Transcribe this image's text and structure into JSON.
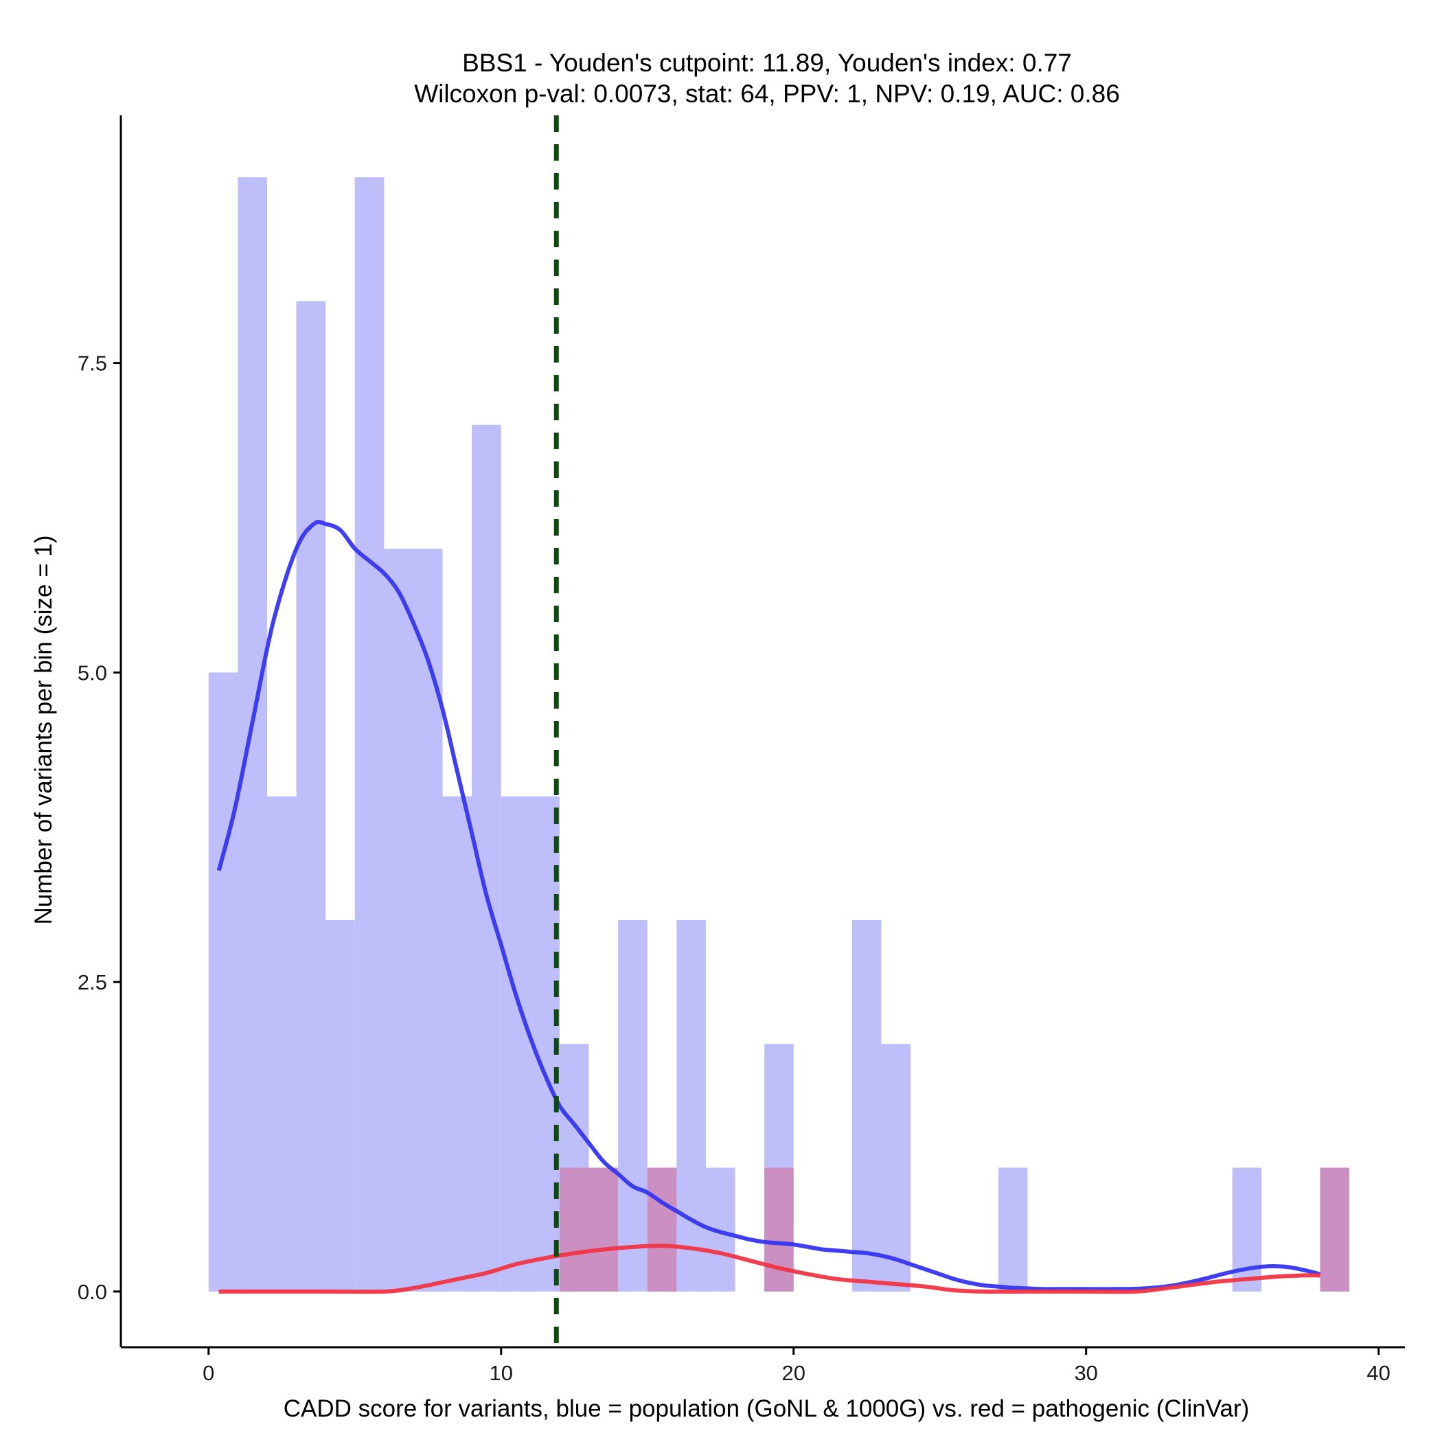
{
  "chart_data": {
    "type": "bar",
    "title": "BBS1 - Youden's cutpoint: 11.89, Youden's index: 0.77",
    "subtitle": "Wilcoxon p-val: 0.0073, stat: 64, PPV: 1, NPV: 0.19, AUC: 0.86",
    "xlabel": "CADD score for variants, blue = population (GoNL & 1000G) vs. red = pathogenic (ClinVar)",
    "ylabel": "Number of variants per bin (size = 1)",
    "xlim": [
      -3,
      40.9
    ],
    "ylim": [
      -0.45,
      9.5
    ],
    "x_ticks": [
      0,
      10,
      20,
      30,
      40
    ],
    "x_tick_labels": [
      "0",
      "10",
      "20",
      "30",
      "40"
    ],
    "y_ticks": [
      0,
      2.5,
      5,
      7.5
    ],
    "y_tick_labels": [
      "0.0",
      "2.5",
      "5.0",
      "7.5"
    ],
    "bin_width": 1,
    "cutpoint": 11.89,
    "colors": {
      "population_bar": "#bebefb",
      "pathogenic_bar": "#cc8fc2",
      "population_density": "#3535f0",
      "pathogenic_density": "#f03545",
      "cutpoint_line": "#0e4a0e",
      "axis": "#000000"
    },
    "series": [
      {
        "name": "population (GoNL & 1000G)",
        "kind": "histogram",
        "bins": [
          {
            "x0": 0,
            "count": 5
          },
          {
            "x0": 1,
            "count": 9
          },
          {
            "x0": 2,
            "count": 4
          },
          {
            "x0": 3,
            "count": 8
          },
          {
            "x0": 4,
            "count": 3
          },
          {
            "x0": 5,
            "count": 9
          },
          {
            "x0": 6,
            "count": 6
          },
          {
            "x0": 7,
            "count": 6
          },
          {
            "x0": 8,
            "count": 4
          },
          {
            "x0": 9,
            "count": 7
          },
          {
            "x0": 10,
            "count": 4
          },
          {
            "x0": 11,
            "count": 4
          },
          {
            "x0": 12,
            "count": 2
          },
          {
            "x0": 13,
            "count": 1
          },
          {
            "x0": 14,
            "count": 3
          },
          {
            "x0": 15,
            "count": 1
          },
          {
            "x0": 16,
            "count": 3
          },
          {
            "x0": 17,
            "count": 1
          },
          {
            "x0": 19,
            "count": 2
          },
          {
            "x0": 22,
            "count": 3
          },
          {
            "x0": 23,
            "count": 2
          },
          {
            "x0": 27,
            "count": 1
          },
          {
            "x0": 35,
            "count": 1
          }
        ]
      },
      {
        "name": "pathogenic (ClinVar)",
        "kind": "histogram",
        "bins": [
          {
            "x0": 12,
            "count": 1
          },
          {
            "x0": 13,
            "count": 1
          },
          {
            "x0": 15,
            "count": 1
          },
          {
            "x0": 19,
            "count": 1
          },
          {
            "x0": 38,
            "count": 1
          }
        ]
      },
      {
        "name": "population density",
        "kind": "line",
        "x": [
          0.35,
          0.9,
          1.5,
          2.2,
          3.0,
          3.6,
          4.0,
          4.5,
          5.0,
          5.5,
          6.0,
          6.5,
          7.0,
          7.5,
          8.0,
          8.5,
          9.0,
          9.5,
          10.0,
          10.5,
          11.0,
          11.5,
          12.0,
          12.5,
          13.0,
          13.5,
          14.0,
          14.5,
          15.0,
          15.5,
          16.0,
          16.5,
          17.0,
          17.5,
          18.0,
          18.5,
          19.0,
          19.5,
          20.0,
          20.5,
          21.0,
          21.5,
          22.0,
          22.5,
          23.0,
          23.5,
          24.0,
          24.5,
          25.0,
          25.5,
          26.0,
          26.5,
          27.0,
          27.5,
          28.0,
          28.5,
          29.0,
          29.5,
          30.0,
          31.0,
          32.0,
          33.0,
          34.0,
          35.0,
          36.0,
          36.8,
          37.5,
          38.0
        ],
        "y": [
          3.4,
          3.9,
          4.6,
          5.4,
          6.0,
          6.2,
          6.2,
          6.15,
          6.0,
          5.9,
          5.8,
          5.65,
          5.4,
          5.1,
          4.7,
          4.2,
          3.7,
          3.2,
          2.8,
          2.4,
          2.05,
          1.75,
          1.5,
          1.35,
          1.2,
          1.05,
          0.95,
          0.85,
          0.8,
          0.72,
          0.65,
          0.58,
          0.52,
          0.48,
          0.45,
          0.42,
          0.4,
          0.39,
          0.38,
          0.36,
          0.34,
          0.33,
          0.32,
          0.31,
          0.29,
          0.26,
          0.22,
          0.18,
          0.14,
          0.1,
          0.07,
          0.05,
          0.04,
          0.03,
          0.025,
          0.02,
          0.02,
          0.02,
          0.02,
          0.02,
          0.025,
          0.05,
          0.1,
          0.16,
          0.2,
          0.2,
          0.17,
          0.14
        ],
        "y_note": "y read in axis units after the curve is rescaled by the plot"
      },
      {
        "name": "pathogenic density",
        "kind": "line",
        "x": [
          0.35,
          2,
          4,
          6,
          6.8,
          7.5,
          8.5,
          9.5,
          10.5,
          11.5,
          12.5,
          13.5,
          14.5,
          15.5,
          16.5,
          17.5,
          18.5,
          19.5,
          20.5,
          21.5,
          22.5,
          23.5,
          24.5,
          25.5,
          26.5,
          28,
          30,
          31.7,
          32.5,
          33.5,
          34.5,
          35.5,
          36.5,
          37.5,
          38.0
        ],
        "y": [
          0,
          0,
          0,
          0,
          0.02,
          0.05,
          0.1,
          0.15,
          0.22,
          0.27,
          0.31,
          0.34,
          0.36,
          0.37,
          0.35,
          0.31,
          0.25,
          0.19,
          0.14,
          0.1,
          0.08,
          0.06,
          0.04,
          0.01,
          0,
          0,
          0,
          0,
          0.02,
          0.05,
          0.08,
          0.1,
          0.12,
          0.13,
          0.13
        ]
      }
    ]
  }
}
